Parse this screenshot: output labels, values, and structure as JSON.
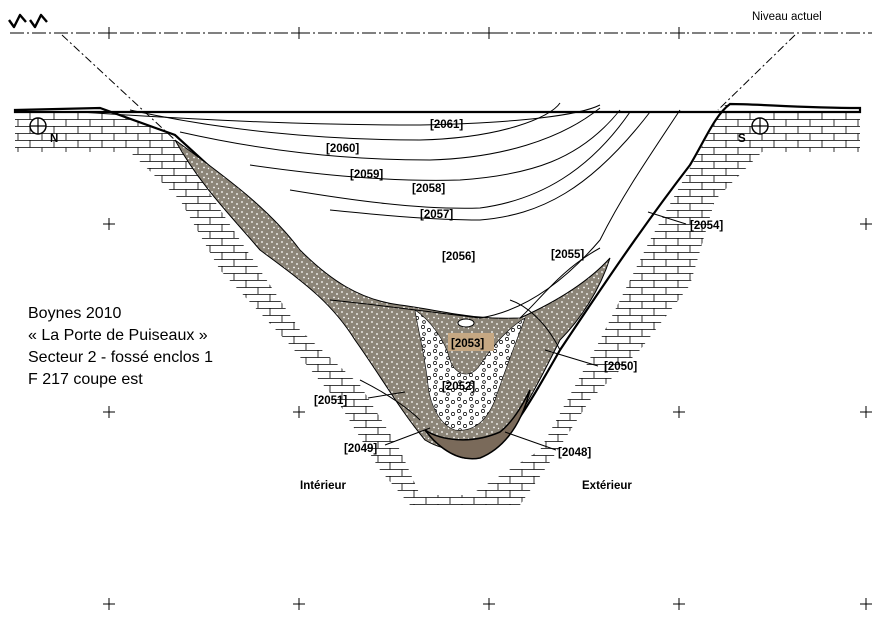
{
  "reference_label": "Niveau actuel",
  "north_label": "N",
  "south_label": "S",
  "interior_label": "Intérieur",
  "exterior_label": "Extérieur",
  "caption": [
    "Boynes 2010",
    "« La Porte de Puiseaux »",
    "Secteur 2 - fossé enclos 1",
    "F 217 coupe est"
  ],
  "layers": {
    "l2061": "[2061]",
    "l2060": "[2060]",
    "l2059": "[2059]",
    "l2058": "[2058]",
    "l2057": "[2057]",
    "l2056": "[2056]",
    "l2055": "[2055]",
    "l2054": "[2054]",
    "l2053": "[2053]",
    "l2052": "[2052]",
    "l2051": "[2051]",
    "l2050": "[2050]",
    "l2049": "[2049]",
    "l2048": "[2048]"
  },
  "colors": {
    "gravel_fill": "#8c8578",
    "dark_fill": "#7a6a5a",
    "highlight": "#c6a883"
  },
  "icons": {
    "top_left": "double-checkmark-symbol",
    "north_marker": "circle-cross-marker",
    "south_marker": "circle-cross-marker",
    "grid": "plus-crosses"
  }
}
